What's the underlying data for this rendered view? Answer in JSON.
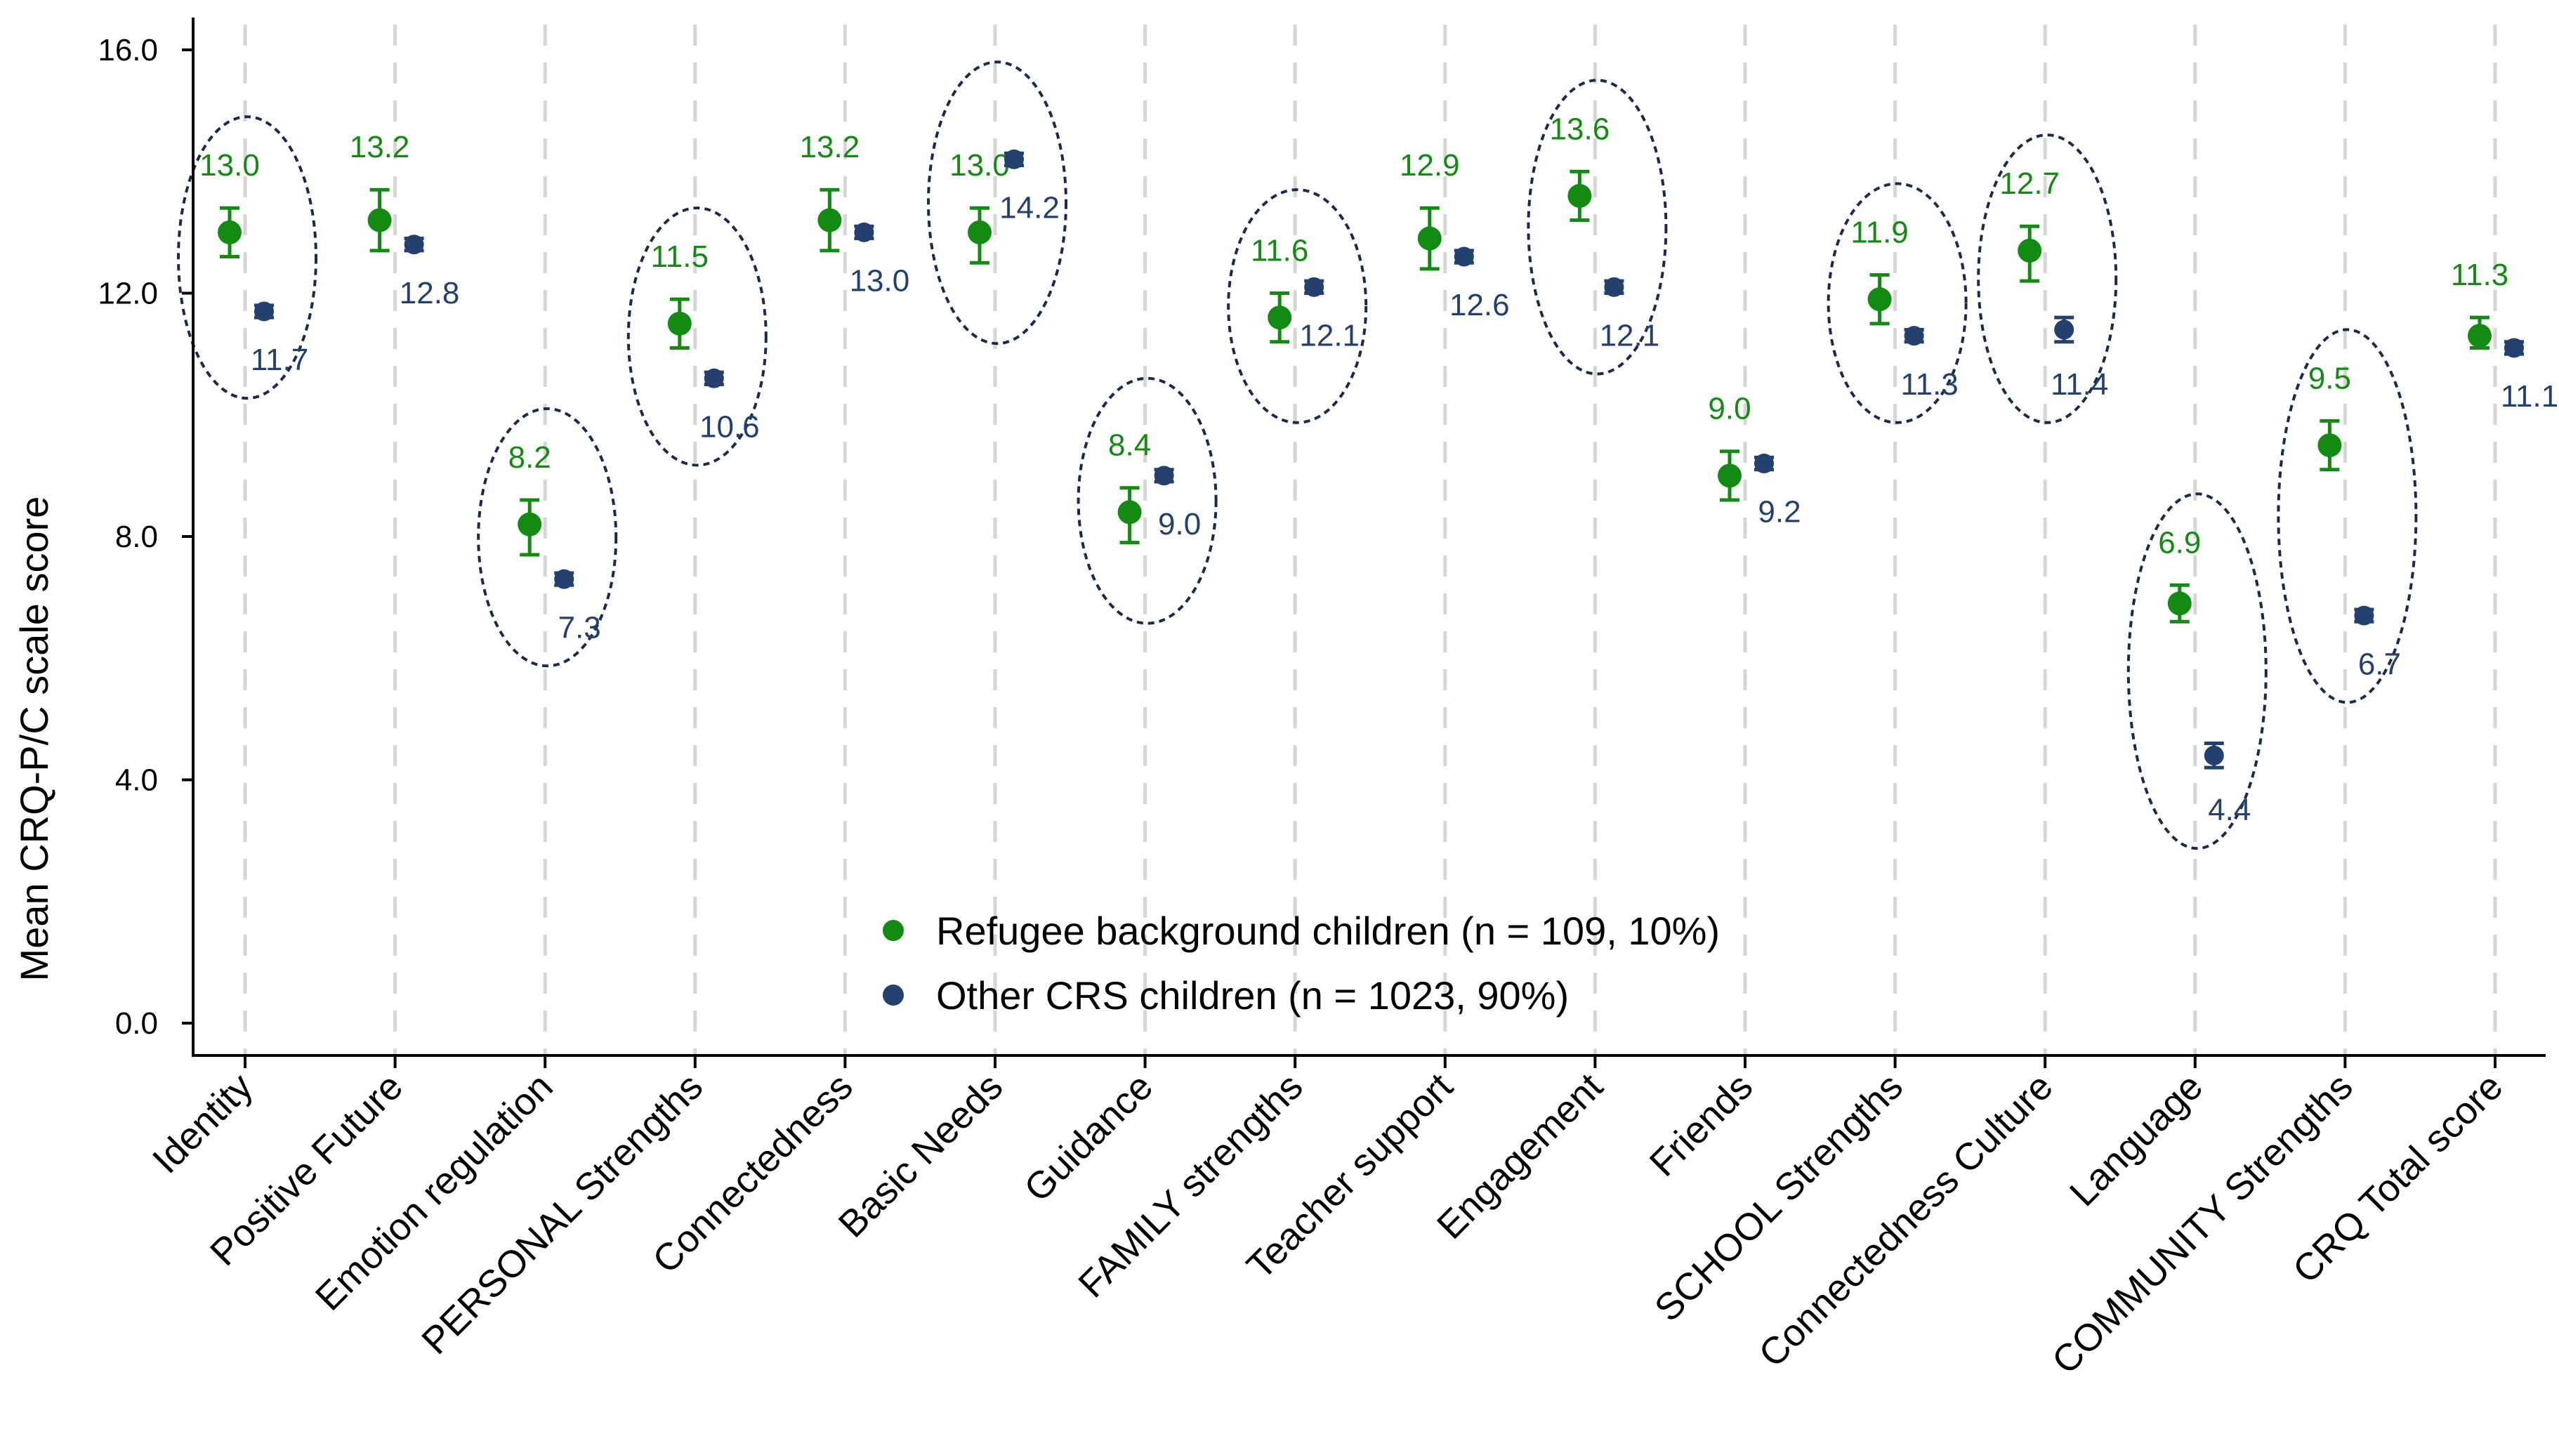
{
  "chart_data": {
    "type": "scatter",
    "ylabel": "Mean CRQ-P/C scale score",
    "xlabel": "",
    "ylim": [
      0,
      16
    ],
    "yticks": [
      "0.0",
      "4.0",
      "8.0",
      "12.0",
      "16.0"
    ],
    "categories": [
      "Identity",
      "Positive Future",
      "Emotion regulation",
      "PERSONAL Strengths",
      "Connectedness",
      "Basic Needs",
      "Guidance",
      "FAMILY strengths",
      "Teacher support",
      "Engagement",
      "Friends",
      "SCHOOL Strengths",
      "Connectedness Culture",
      "Language",
      "COMMUNITY Strengths",
      "CRQ Total score"
    ],
    "series": [
      {
        "name": "Refugee background children (n = 109, 10%)",
        "color": "#138a12",
        "values": [
          13.0,
          13.2,
          8.2,
          11.5,
          13.2,
          13.0,
          8.4,
          11.6,
          12.9,
          13.6,
          9.0,
          11.9,
          12.7,
          6.9,
          9.5,
          11.3
        ],
        "labels": [
          "13.0",
          "13.2",
          "8.2",
          "11.5",
          "13.2",
          "13.0",
          "8.4",
          "11.6",
          "12.9",
          "13.6",
          "9.0",
          "11.9",
          "12.7",
          "6.9",
          "9.5",
          "11.3"
        ],
        "ci_low": [
          12.6,
          12.7,
          7.7,
          11.1,
          12.7,
          12.5,
          7.9,
          11.2,
          12.4,
          13.2,
          8.6,
          11.5,
          12.2,
          6.6,
          9.1,
          11.1
        ],
        "ci_high": [
          13.4,
          13.7,
          8.6,
          11.9,
          13.7,
          13.4,
          8.8,
          12.0,
          13.4,
          14.0,
          9.4,
          12.3,
          13.1,
          7.2,
          9.9,
          11.6
        ]
      },
      {
        "name": "Other CRS children (n = 1023, 90%)",
        "color": "#24406f",
        "values": [
          11.7,
          12.8,
          7.3,
          10.6,
          13.0,
          14.2,
          9.0,
          12.1,
          12.6,
          12.1,
          9.2,
          11.3,
          11.4,
          4.4,
          6.7,
          11.1
        ],
        "labels": [
          "11.7",
          "12.8",
          "7.3",
          "10.6",
          "13.0",
          "14.2",
          "9.0",
          "12.1",
          "12.6",
          "12.1",
          "9.2",
          "11.3",
          "11.4",
          "4.4",
          "6.7",
          "11.1"
        ],
        "ci_low": [
          11.6,
          12.7,
          7.2,
          10.5,
          12.9,
          14.1,
          8.9,
          12.0,
          12.5,
          12.0,
          9.1,
          11.2,
          11.2,
          4.2,
          6.6,
          11.0
        ],
        "ci_high": [
          11.8,
          12.9,
          7.4,
          10.7,
          13.1,
          14.3,
          9.1,
          12.2,
          12.7,
          12.2,
          9.3,
          11.4,
          11.6,
          4.6,
          6.8,
          11.2
        ]
      }
    ],
    "highlighted_categories": [
      0,
      2,
      3,
      5,
      6,
      7,
      9,
      11,
      12,
      13,
      14
    ],
    "legend": "bottom-center",
    "grid": "vertical-dashed"
  }
}
